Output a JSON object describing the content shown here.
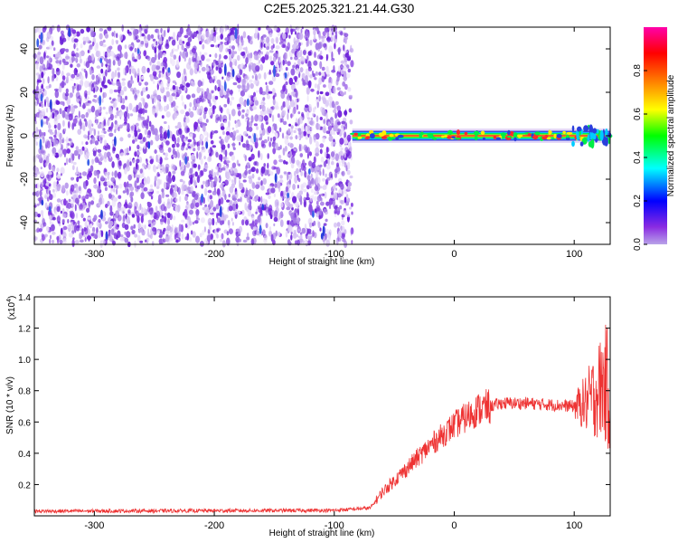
{
  "title": "C2E5.2025.321.21.44.G30",
  "chart_data": [
    {
      "type": "heatmap",
      "xlabel": "Height of straight line (km)",
      "ylabel": "Frequency (Hz)",
      "xlim": [
        -350,
        130
      ],
      "ylim": [
        -50,
        50
      ],
      "xticks": [
        -300,
        -200,
        -100,
        0,
        100
      ],
      "yticks": [
        -40,
        -20,
        0,
        20,
        40
      ],
      "noise_region_x": [
        -350,
        -85
      ],
      "signal_band": {
        "x": [
          -85,
          130
        ],
        "y": [
          -4,
          4
        ],
        "peak_y": 0
      },
      "colorbar": {
        "label": "Normalized spectral amplitude",
        "range": [
          0,
          1
        ],
        "ticks": [
          "0.0",
          "0.2",
          "0.4",
          "0.6",
          "0.8"
        ],
        "colors": [
          "#8a2be2",
          "#0000ff",
          "#00ffff",
          "#00ff00",
          "#ffff00",
          "#ff7f00",
          "#ff0000",
          "#ff00ff"
        ]
      }
    },
    {
      "type": "line",
      "xlabel": "Height of straight line (km)",
      "ylabel": "SNR (10 * v/v)",
      "y_multiplier": "(x10^4)",
      "y_multiplier_base": "(x10",
      "y_multiplier_exp": "4",
      "y_multiplier_close": ")",
      "xlim": [
        -350,
        130
      ],
      "ylim": [
        0,
        1.4
      ],
      "xticks": [
        -300,
        -200,
        -100,
        0,
        100
      ],
      "yticks": [
        "0.2",
        "0.4",
        "0.6",
        "0.8",
        "1.0",
        "1.2",
        "1.4"
      ],
      "color": "#ee3333",
      "profile": {
        "x": [
          -350,
          -100,
          -70,
          -60,
          -40,
          -20,
          0,
          20,
          40,
          60,
          80,
          100,
          110,
          120,
          125,
          130
        ],
        "y": [
          0.03,
          0.035,
          0.05,
          0.15,
          0.3,
          0.45,
          0.58,
          0.68,
          0.72,
          0.72,
          0.71,
          0.7,
          0.72,
          0.8,
          0.85,
          0.8
        ]
      }
    }
  ]
}
